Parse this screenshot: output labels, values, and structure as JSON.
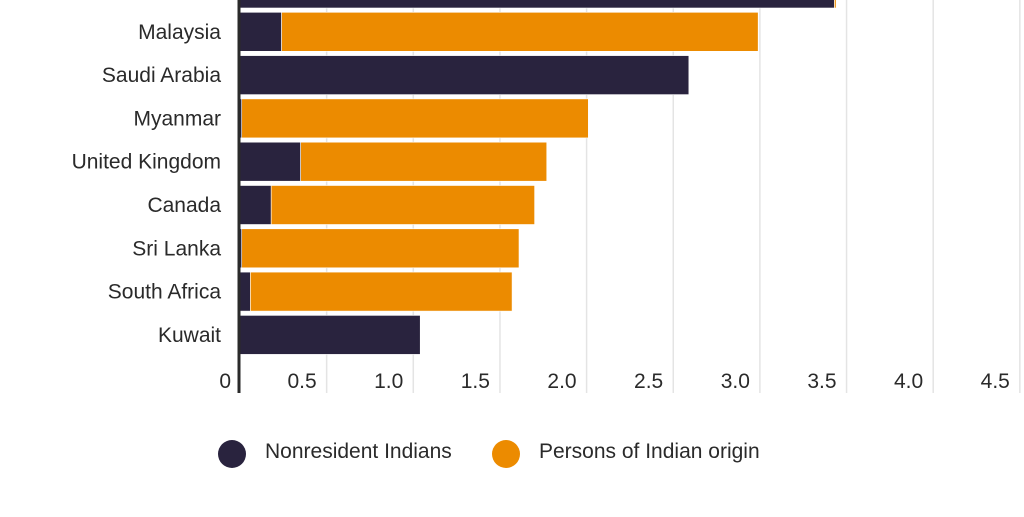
{
  "chart_data": {
    "type": "bar",
    "orientation": "horizontal",
    "stacked": true,
    "categories": [
      "",
      "Malaysia",
      "Saudi Arabia",
      "Myanmar",
      "United Kingdom",
      "Canada",
      "Sri Lanka",
      "South Africa",
      "Kuwait"
    ],
    "series": [
      {
        "name": "Nonresident Indians",
        "color": "#29233e",
        "values": [
          3.43,
          0.24,
          2.59,
          0.01,
          0.35,
          0.18,
          0.01,
          0.06,
          1.04
        ]
      },
      {
        "name": "Persons of Indian origin",
        "color": "#ec8b00",
        "values": [
          0.01,
          2.75,
          0,
          2.0,
          1.42,
          1.52,
          1.6,
          1.51,
          0
        ]
      }
    ],
    "xlim": [
      0,
      4.5
    ],
    "xticks": [
      "0",
      "0.5",
      "1.0",
      "1.5",
      "2.0",
      "2.5",
      "3.0",
      "3.5",
      "4.0",
      "4.5"
    ],
    "xtick_values": [
      0,
      0.5,
      1,
      1.5,
      2,
      2.5,
      3,
      3.5,
      4,
      4.5
    ],
    "grid": true,
    "legend": "bottom"
  }
}
